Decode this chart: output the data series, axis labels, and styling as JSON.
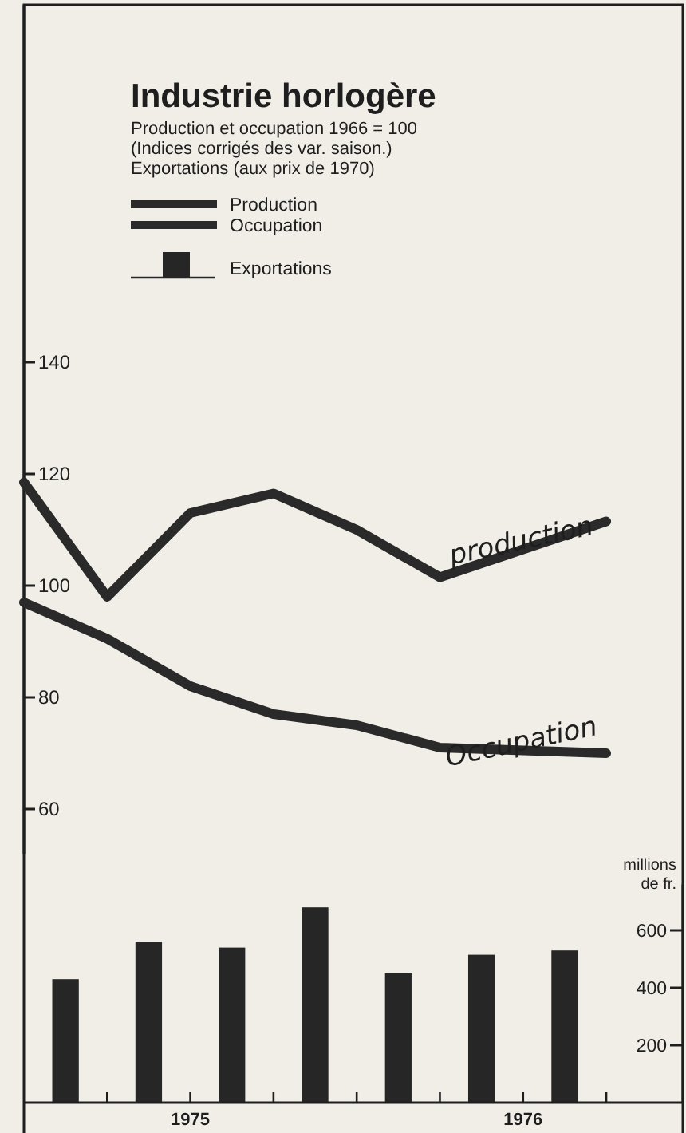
{
  "chart_data": [
    {
      "type": "line",
      "title": "Industrie horlogère",
      "subtitle": "Production et occupation 1966 = 100\n(Indices  corrigés des var. saison.)\nExportations (aux prix de 1970)",
      "series": [
        {
          "name": "Production",
          "color": "#2a2a2a",
          "x": [
            1975.0,
            1975.25,
            1975.5,
            1975.75,
            1976.0,
            1976.25,
            1976.75
          ],
          "values": [
            118.5,
            98,
            113,
            116.5,
            110,
            101.5,
            111.5
          ]
        },
        {
          "name": "Occupation",
          "color": "#2a2a2a",
          "x": [
            1975.0,
            1975.25,
            1975.5,
            1975.75,
            1976.0,
            1976.25,
            1976.75
          ],
          "values": [
            97,
            90.5,
            82,
            77,
            75,
            71,
            70
          ]
        }
      ],
      "annotations": [
        {
          "text": "production",
          "x": 1976.5,
          "y": 106.5
        },
        {
          "text": "Occupation",
          "x": 1976.5,
          "y": 70.5
        }
      ],
      "xlim": [
        1975,
        1976.98
      ],
      "ylim": [
        52,
        204
      ],
      "yticks": [
        60,
        80,
        100,
        120,
        140
      ],
      "tick_labels": "y",
      "legend": "top left",
      "grid": false,
      "marker": "none",
      "line_style": "solid"
    },
    {
      "type": "bar",
      "series": [
        {
          "name": "Exportations",
          "color": "#262626",
          "axis": "y2",
          "x": [
            1975.125,
            1975.375,
            1975.625,
            1975.875,
            1976.125,
            1976.375,
            1976.625
          ],
          "values": [
            430,
            560,
            540,
            680,
            450,
            515,
            530
          ]
        }
      ],
      "y2label": "millions de fr.",
      "xlim": [
        1975,
        1976.98
      ],
      "xticks": [
        {
          "value": 1975.25,
          "label": null
        },
        {
          "value": 1975.5,
          "label": "1975"
        },
        {
          "value": 1975.75,
          "label": null
        },
        {
          "value": 1976.0,
          "label": null
        },
        {
          "value": 1976.25,
          "label": null
        },
        {
          "value": 1976.5,
          "label": "1976"
        },
        {
          "value": 1976.75,
          "label": null
        }
      ],
      "y2lim": [
        0,
        760
      ],
      "y2ticks": [
        200,
        400,
        600
      ],
      "grid": false
    }
  ]
}
